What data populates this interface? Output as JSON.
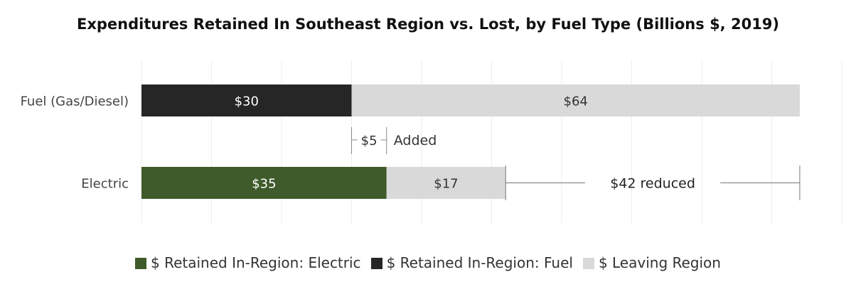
{
  "chart_data": {
    "type": "bar",
    "orientation": "horizontal",
    "stacked": true,
    "title": "Expenditures Retained In Southeast Region vs. Lost, by Fuel Type (Billions $, 2019)",
    "categories": [
      "Fuel (Gas/Diesel)",
      "Electric"
    ],
    "series": [
      {
        "name": "$ Retained In-Region: Electric",
        "values": [
          0,
          35
        ],
        "labels": [
          "",
          "$35"
        ],
        "color": "#3f5a2b"
      },
      {
        "name": "$ Retained In-Region: Fuel",
        "values": [
          30,
          0
        ],
        "labels": [
          "$30",
          ""
        ],
        "color": "#262626"
      },
      {
        "name": "$ Leaving Region",
        "values": [
          64,
          17
        ],
        "labels": [
          "$64",
          "$17"
        ],
        "color": "#d9d9d9"
      }
    ],
    "xlim": [
      0,
      100
    ],
    "grid": true,
    "legend_position": "bottom",
    "annotations": [
      {
        "text": "$5",
        "from": 30,
        "to": 35,
        "between": [
          "Fuel (Gas/Diesel)",
          "Electric"
        ]
      },
      {
        "text": "Added"
      },
      {
        "text": "$42 reduced",
        "from": 52,
        "to": 94,
        "category": "Electric"
      }
    ]
  }
}
